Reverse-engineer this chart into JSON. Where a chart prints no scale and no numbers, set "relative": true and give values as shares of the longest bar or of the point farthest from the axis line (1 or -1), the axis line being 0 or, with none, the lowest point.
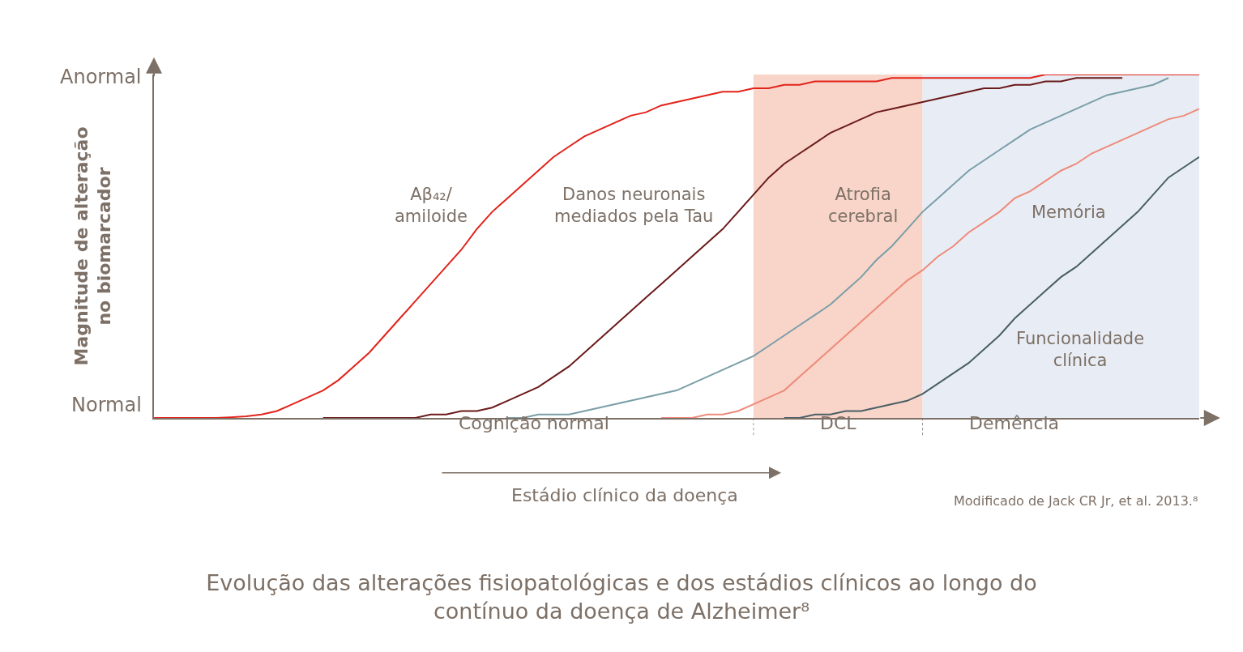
{
  "chart_data": {
    "type": "line",
    "title": "Evolução das alterações fisiopatológicas e dos estádios clínicos ao longo do\ncontínuo da doença de Alzheimer⁸",
    "xlabel": "Estádio clínico da doença",
    "ylabel": "Magnitude de alteração\nno biomarcador",
    "categories": [
      null,
      null,
      null,
      null,
      null,
      null,
      null,
      null,
      null,
      null,
      null,
      null,
      null,
      null,
      null,
      null,
      null,
      null,
      null,
      null,
      null,
      null,
      null,
      null,
      null,
      null,
      null,
      null,
      null,
      null,
      null,
      null,
      null,
      null,
      null,
      null,
      null,
      null,
      null,
      null,
      null,
      null,
      null,
      null,
      null,
      null,
      null,
      null,
      null,
      null,
      null,
      null,
      null,
      null,
      null,
      null,
      null,
      null,
      null,
      null,
      null,
      null,
      null,
      null,
      null,
      null,
      null,
      null,
      null
    ],
    "relative": true,
    "series": [
      {
        "name": "Aβ₄₂/\namiloide",
        "color": "#e2231a",
        "values": [
          0,
          0,
          0,
          0,
          0,
          0.002,
          0.005,
          0.01,
          0.02,
          0.04,
          0.06,
          0.08,
          0.11,
          0.15,
          0.19,
          0.24,
          0.29,
          0.34,
          0.39,
          0.44,
          0.49,
          0.55,
          0.6,
          0.64,
          0.68,
          0.72,
          0.76,
          0.79,
          0.82,
          0.84,
          0.86,
          0.88,
          0.89,
          0.91,
          0.92,
          0.93,
          0.94,
          0.95,
          0.95,
          0.96,
          0.96,
          0.97,
          0.97,
          0.98,
          0.98,
          0.98,
          0.98,
          0.98,
          0.99,
          0.99,
          0.99,
          0.99,
          0.99,
          0.99,
          0.99,
          0.99,
          0.99,
          0.99,
          1,
          1,
          1,
          1,
          1,
          1,
          1,
          1,
          1,
          1,
          1
        ]
      },
      {
        "name": "Danos neuronais\nmediados pela Tau",
        "color": "#6b1a1a",
        "values": [
          null,
          null,
          null,
          null,
          null,
          null,
          null,
          null,
          null,
          null,
          null,
          0,
          0,
          0,
          0,
          0,
          0,
          0,
          0.01,
          0.01,
          0.02,
          0.02,
          0.03,
          0.05,
          0.07,
          0.09,
          0.12,
          0.15,
          0.19,
          0.23,
          0.27,
          0.31,
          0.35,
          0.39,
          0.43,
          0.47,
          0.51,
          0.55,
          0.6,
          0.65,
          0.7,
          0.74,
          0.77,
          0.8,
          0.83,
          0.85,
          0.87,
          0.89,
          0.9,
          0.91,
          0.92,
          0.93,
          0.94,
          0.95,
          0.96,
          0.96,
          0.97,
          0.97,
          0.98,
          0.98,
          0.99,
          0.99,
          0.99,
          0.99,
          null,
          null,
          null,
          null,
          null
        ]
      },
      {
        "name": "Atrofia\ncerebral",
        "color": "#7a9ea8",
        "values": [
          null,
          null,
          null,
          null,
          null,
          null,
          null,
          null,
          null,
          null,
          null,
          null,
          null,
          null,
          null,
          null,
          null,
          null,
          null,
          null,
          null,
          null,
          null,
          0,
          0,
          0.01,
          0.01,
          0.01,
          0.02,
          0.03,
          0.04,
          0.05,
          0.06,
          0.07,
          0.08,
          0.1,
          0.12,
          0.14,
          0.16,
          0.18,
          0.21,
          0.24,
          0.27,
          0.3,
          0.33,
          0.37,
          0.41,
          0.46,
          0.5,
          0.55,
          0.6,
          0.64,
          0.68,
          0.72,
          0.75,
          0.78,
          0.81,
          0.84,
          0.86,
          0.88,
          0.9,
          0.92,
          0.94,
          0.95,
          0.96,
          0.97,
          0.99,
          null,
          null
        ]
      },
      {
        "name": "Memória",
        "color": "#ee8a7a",
        "values": [
          null,
          null,
          null,
          null,
          null,
          null,
          null,
          null,
          null,
          null,
          null,
          null,
          null,
          null,
          null,
          null,
          null,
          null,
          null,
          null,
          null,
          null,
          null,
          null,
          null,
          null,
          null,
          null,
          null,
          null,
          null,
          null,
          null,
          0,
          0,
          0,
          0.01,
          0.01,
          0.02,
          0.04,
          0.06,
          0.08,
          0.12,
          0.16,
          0.2,
          0.24,
          0.28,
          0.32,
          0.36,
          0.4,
          0.43,
          0.47,
          0.5,
          0.54,
          0.57,
          0.6,
          0.64,
          0.66,
          0.69,
          0.72,
          0.74,
          0.77,
          0.79,
          0.81,
          0.83,
          0.85,
          0.87,
          0.88,
          0.9
        ]
      },
      {
        "name": "Funcionalidade\nclínica",
        "color": "#4a5e66",
        "values": [
          null,
          null,
          null,
          null,
          null,
          null,
          null,
          null,
          null,
          null,
          null,
          null,
          null,
          null,
          null,
          null,
          null,
          null,
          null,
          null,
          null,
          null,
          null,
          null,
          null,
          null,
          null,
          null,
          null,
          null,
          null,
          null,
          null,
          null,
          null,
          null,
          null,
          null,
          null,
          null,
          null,
          0,
          0,
          0.01,
          0.01,
          0.02,
          0.02,
          0.03,
          0.04,
          0.05,
          0.07,
          0.1,
          0.13,
          0.16,
          0.2,
          0.24,
          0.29,
          0.33,
          0.37,
          0.41,
          0.44,
          0.48,
          0.52,
          0.56,
          0.6,
          0.65,
          0.7,
          0.73,
          0.76
        ]
      }
    ],
    "annotations": [
      "Cognição normal",
      "Modificado de Jack CR Jr, et al. 2013.⁸",
      "Normal",
      "Anormal",
      "DCL",
      "Demência"
    ],
    "legend": false,
    "grid": false
  }
}
